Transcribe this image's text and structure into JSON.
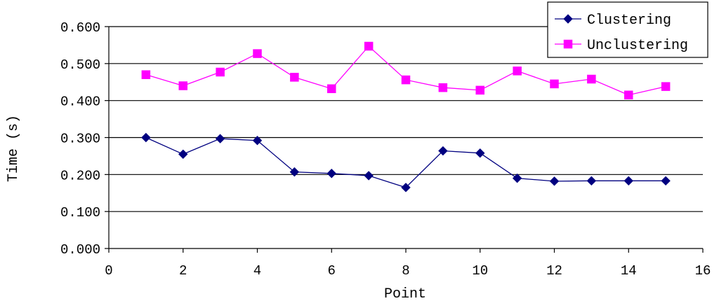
{
  "chart_data": {
    "type": "line",
    "xlabel": "Point",
    "ylabel": "Time (s)",
    "xlim": [
      0,
      16
    ],
    "ylim": [
      0,
      0.6
    ],
    "x_ticks": [
      "0",
      "2",
      "4",
      "6",
      "8",
      "10",
      "12",
      "14",
      "16"
    ],
    "y_ticks": [
      "0.000",
      "0.100",
      "0.200",
      "0.300",
      "0.400",
      "0.500",
      "0.600"
    ],
    "grid": "horizontal",
    "legend_position": "top-right",
    "x": [
      1,
      2,
      3,
      4,
      5,
      6,
      7,
      8,
      9,
      10,
      11,
      12,
      13,
      14,
      15
    ],
    "series": [
      {
        "name": "Clustering",
        "marker": "diamond",
        "color": "#000080",
        "values": [
          0.3,
          0.255,
          0.297,
          0.292,
          0.207,
          0.203,
          0.197,
          0.165,
          0.264,
          0.258,
          0.19,
          0.182,
          0.183,
          0.183,
          0.183
        ]
      },
      {
        "name": "Unclustering",
        "marker": "square",
        "color": "#FF00FF",
        "values": [
          0.47,
          0.44,
          0.477,
          0.527,
          0.463,
          0.432,
          0.547,
          0.456,
          0.435,
          0.428,
          0.48,
          0.445,
          0.458,
          0.415,
          0.438
        ]
      }
    ]
  }
}
